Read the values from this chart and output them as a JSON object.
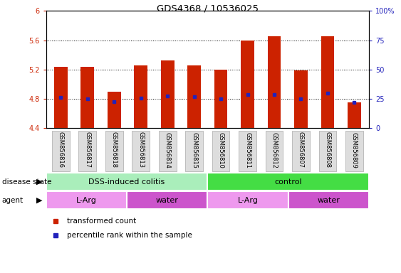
{
  "title": "GDS4368 / 10536025",
  "samples": [
    "GSM856816",
    "GSM856817",
    "GSM856818",
    "GSM856813",
    "GSM856814",
    "GSM856815",
    "GSM856810",
    "GSM856811",
    "GSM856812",
    "GSM856807",
    "GSM856808",
    "GSM856809"
  ],
  "bar_values": [
    5.24,
    5.24,
    4.9,
    5.26,
    5.33,
    5.26,
    5.2,
    5.6,
    5.65,
    5.19,
    5.65,
    4.75
  ],
  "bar_bottom": 4.4,
  "percentile_values": [
    4.82,
    4.8,
    4.76,
    4.81,
    4.84,
    4.83,
    4.8,
    4.86,
    4.86,
    4.8,
    4.88,
    4.75
  ],
  "ylim": [
    4.4,
    6.0
  ],
  "yticks": [
    4.4,
    4.8,
    5.2,
    5.6,
    6.0
  ],
  "ytick_labels": [
    "4.4",
    "4.8",
    "5.2",
    "5.6",
    "6"
  ],
  "right_yticks": [
    0,
    25,
    50,
    75,
    100
  ],
  "right_ytick_labels": [
    "0",
    "25",
    "50",
    "75",
    "100%"
  ],
  "bar_color": "#cc2200",
  "percentile_color": "#2222bb",
  "disease_state_groups": [
    {
      "label": "DSS-induced colitis",
      "start": 0,
      "end": 6,
      "color": "#aaeebb"
    },
    {
      "label": "control",
      "start": 6,
      "end": 12,
      "color": "#44dd44"
    }
  ],
  "agent_groups": [
    {
      "label": "L-Arg",
      "start": 0,
      "end": 3,
      "color": "#ee99ee"
    },
    {
      "label": "water",
      "start": 3,
      "end": 6,
      "color": "#cc55cc"
    },
    {
      "label": "L-Arg",
      "start": 6,
      "end": 9,
      "color": "#ee99ee"
    },
    {
      "label": "water",
      "start": 9,
      "end": 12,
      "color": "#cc55cc"
    }
  ],
  "legend_items": [
    {
      "label": "transformed count",
      "color": "#cc2200"
    },
    {
      "label": "percentile rank within the sample",
      "color": "#2222bb"
    }
  ],
  "bar_width": 0.5,
  "axis_label_color_left": "#cc2200",
  "axis_label_color_right": "#2222bb",
  "sample_box_color": "#dddddd",
  "sample_box_edge": "#aaaaaa"
}
